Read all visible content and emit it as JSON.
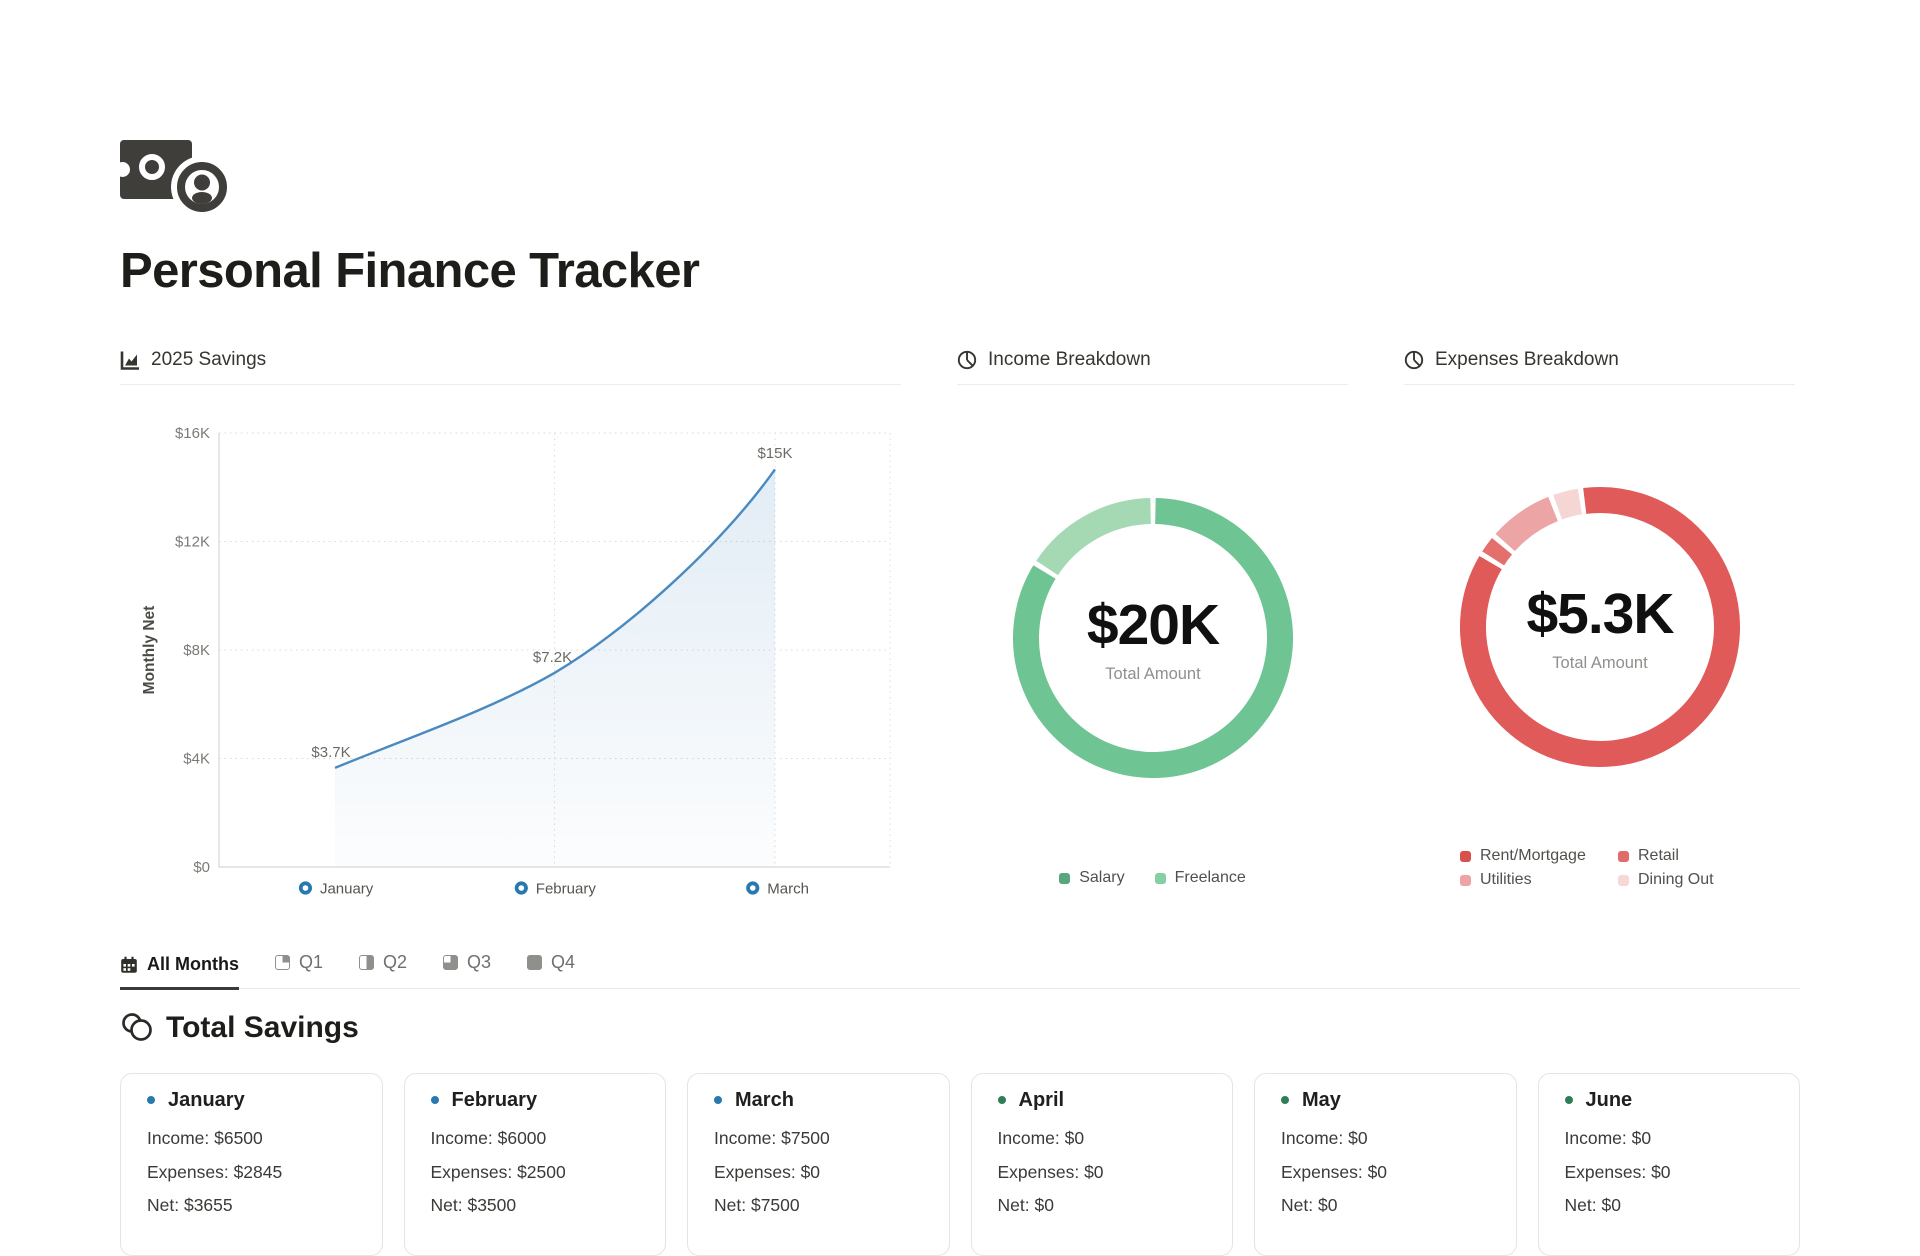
{
  "page": {
    "title": "Personal Finance Tracker"
  },
  "savings_panel": {
    "title": "2025 Savings"
  },
  "income_panel": {
    "title": "Income Breakdown",
    "center_value": "$20K",
    "center_label": "Total Amount"
  },
  "expenses_panel": {
    "title": "Expenses Breakdown",
    "center_value": "$5.3K",
    "center_label": "Total Amount"
  },
  "chart_data": [
    {
      "type": "area",
      "title": "2025 Savings",
      "ylabel": "Monthly Net",
      "x": [
        "January",
        "February",
        "March"
      ],
      "values": [
        3655,
        7155,
        14655
      ],
      "point_labels": [
        "$3.7K",
        "$7.2K",
        "$15K"
      ],
      "yticks": [
        0,
        4000,
        8000,
        12000,
        16000
      ],
      "ytick_labels": [
        "$0",
        "$4K",
        "$8K",
        "$12K",
        "$16K"
      ],
      "ylim": [
        0,
        16000
      ],
      "grid": "dotted",
      "line_color": "#4a8ac0",
      "marker_color": "#2879ae"
    },
    {
      "type": "donut",
      "title": "Income Breakdown",
      "center_value": "$20K",
      "center_label": "Total Amount",
      "rotation": 0,
      "segments": [
        {
          "label": "Salary",
          "percent": 84,
          "color": "#6ec492",
          "legend_color": "#56a87c"
        },
        {
          "label": "Freelance",
          "percent": 16,
          "color": "#a4d9b4",
          "legend_color": "#86cfa4"
        }
      ]
    },
    {
      "type": "donut",
      "title": "Expenses Breakdown",
      "center_value": "$5.3K",
      "center_label": "Total Amount",
      "rotation": -8,
      "segments": [
        {
          "label": "Rent/Mortgage",
          "percent": 86,
          "color": "#e05a5a",
          "legend_color": "#d9514d"
        },
        {
          "label": "Retail",
          "percent": 2.5,
          "color": "#e4706e",
          "legend_color": "#e06b6b"
        },
        {
          "label": "Utilities",
          "percent": 8,
          "color": "#eda4a4",
          "legend_color": "#eda4a4"
        },
        {
          "label": "Dining Out",
          "percent": 3.5,
          "color": "#f6d6d4",
          "legend_color": "#f6d8d6"
        }
      ]
    }
  ],
  "tabs": [
    {
      "label": "All Months",
      "icon": "calendar",
      "quarters": 0,
      "active": true
    },
    {
      "label": "Q1",
      "icon": "quarter",
      "quarters": 1,
      "active": false
    },
    {
      "label": "Q2",
      "icon": "quarter",
      "quarters": 2,
      "active": false
    },
    {
      "label": "Q3",
      "icon": "quarter",
      "quarters": 3,
      "active": false
    },
    {
      "label": "Q4",
      "icon": "quarter",
      "quarters": 4,
      "active": false
    }
  ],
  "total_savings": {
    "heading": "Total Savings"
  },
  "cards": [
    {
      "month": "January",
      "marker_color": "#2879ae",
      "income": "Income: $6500",
      "expenses": "Expenses: $2845",
      "net": "Net: $3655"
    },
    {
      "month": "February",
      "marker_color": "#2879ae",
      "income": "Income: $6000",
      "expenses": "Expenses: $2500",
      "net": "Net: $3500"
    },
    {
      "month": "March",
      "marker_color": "#2879ae",
      "income": "Income: $7500",
      "expenses": "Expenses: $0",
      "net": "Net: $7500"
    },
    {
      "month": "April",
      "marker_color": "#2f7e57",
      "income": "Income: $0",
      "expenses": "Expenses: $0",
      "net": "Net: $0"
    },
    {
      "month": "May",
      "marker_color": "#2f7e57",
      "income": "Income: $0",
      "expenses": "Expenses: $0",
      "net": "Net: $0"
    },
    {
      "month": "June",
      "marker_color": "#2f7e57",
      "income": "Income: $0",
      "expenses": "Expenses: $0",
      "net": "Net: $0"
    }
  ]
}
